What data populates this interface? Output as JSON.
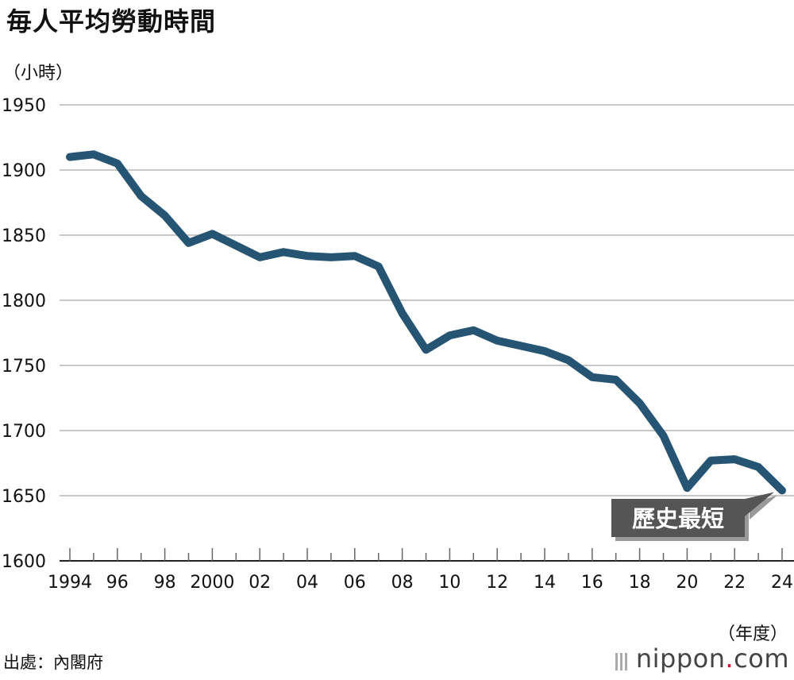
{
  "title": "毎人平均勞動時間",
  "y_unit": "（小時）",
  "x_unit": "（年度）",
  "source": "出處：內閣府",
  "brand": {
    "name": "nippon",
    "dot": ".",
    "tld": "com"
  },
  "annotation": "歷史最短",
  "colors": {
    "line": "#265574",
    "grid": "#c8c8c8",
    "annotation_bg": "#555555",
    "annotation_text": "#ffffff"
  },
  "chart_data": {
    "type": "line",
    "title": "毎人平均勞動時間",
    "ylabel": "（小時）",
    "xlabel": "（年度）",
    "ylim": [
      1600,
      1950
    ],
    "yticks": [
      1600,
      1650,
      1700,
      1750,
      1800,
      1850,
      1900,
      1950
    ],
    "xtick_labels": [
      {
        "year": 1994,
        "label": "1994"
      },
      {
        "year": 1996,
        "label": "96"
      },
      {
        "year": 1998,
        "label": "98"
      },
      {
        "year": 2000,
        "label": "2000"
      },
      {
        "year": 2002,
        "label": "02"
      },
      {
        "year": 2004,
        "label": "04"
      },
      {
        "year": 2006,
        "label": "06"
      },
      {
        "year": 2008,
        "label": "08"
      },
      {
        "year": 2010,
        "label": "10"
      },
      {
        "year": 2012,
        "label": "12"
      },
      {
        "year": 2014,
        "label": "14"
      },
      {
        "year": 2016,
        "label": "16"
      },
      {
        "year": 2018,
        "label": "18"
      },
      {
        "year": 2020,
        "label": "20"
      },
      {
        "year": 2022,
        "label": "22"
      },
      {
        "year": 2024,
        "label": "24"
      }
    ],
    "grid": true,
    "x": [
      1994,
      1995,
      1996,
      1997,
      1998,
      1999,
      2000,
      2001,
      2002,
      2003,
      2004,
      2005,
      2006,
      2007,
      2008,
      2009,
      2010,
      2011,
      2012,
      2013,
      2014,
      2015,
      2016,
      2017,
      2018,
      2019,
      2020,
      2021,
      2022,
      2023,
      2024
    ],
    "series": [
      {
        "values": [
          1910,
          1912,
          1905,
          1880,
          1865,
          1844,
          1851,
          1842,
          1833,
          1837,
          1834,
          1833,
          1834,
          1826,
          1790,
          1762,
          1773,
          1777,
          1769,
          1765,
          1761,
          1754,
          1741,
          1739,
          1721,
          1696,
          1656,
          1677,
          1678,
          1672,
          1654
        ]
      }
    ]
  }
}
